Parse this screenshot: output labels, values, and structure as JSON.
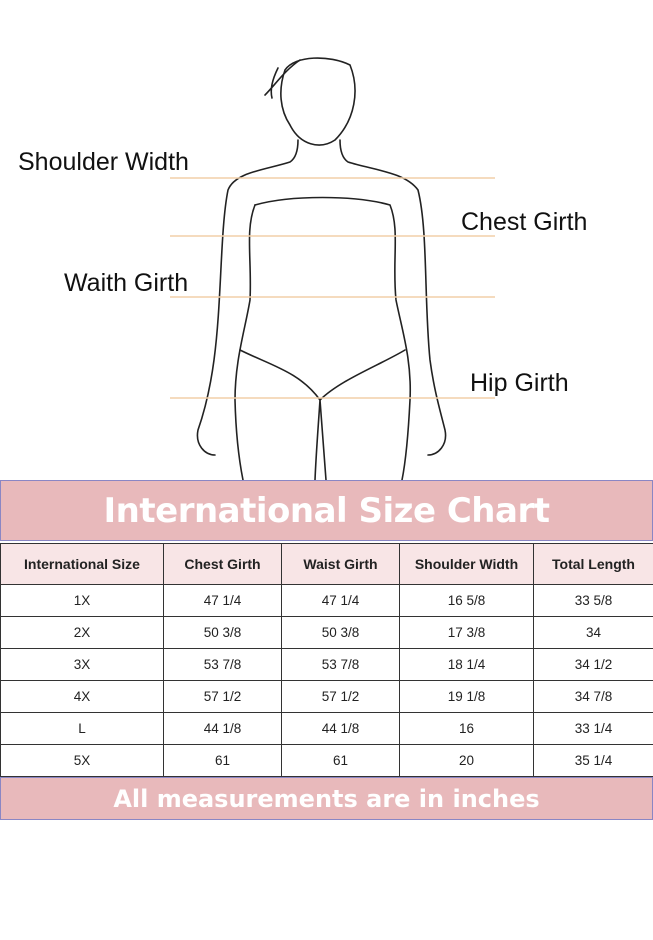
{
  "figure": {
    "labels": {
      "shoulder": "Shoulder Width",
      "chest": "Chest Girth",
      "waist": "Waith Girth",
      "hip": "Hip Girth"
    },
    "line_color": "#f2cfa8"
  },
  "chart": {
    "title": "International Size Chart",
    "footer": "All measurements are in inches",
    "accent_color": "#e8b9bb",
    "columns": [
      "International Size",
      "Chest Girth",
      "Waist Girth",
      "Shoulder Width",
      "Total Length"
    ],
    "rows": [
      [
        "1X",
        "47 1/4",
        "47 1/4",
        "16 5/8",
        "33 5/8"
      ],
      [
        "2X",
        "50 3/8",
        "50 3/8",
        "17 3/8",
        "34"
      ],
      [
        "3X",
        "53 7/8",
        "53 7/8",
        "18 1/4",
        "34 1/2"
      ],
      [
        "4X",
        "57 1/2",
        "57 1/2",
        "19 1/8",
        "34 7/8"
      ],
      [
        "L",
        "44 1/8",
        "44 1/8",
        "16",
        "33 1/4"
      ],
      [
        "5X",
        "61",
        "61",
        "20",
        "35 1/4"
      ]
    ]
  }
}
